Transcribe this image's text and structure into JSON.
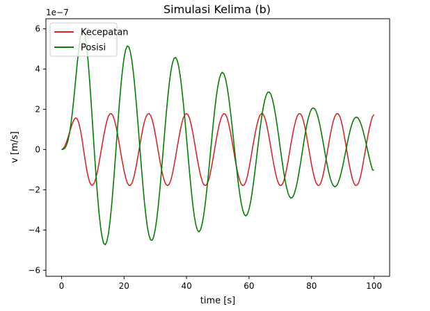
{
  "chart_data": {
    "type": "line",
    "title": "Simulasi Kelima (b)",
    "xlabel": "time [s]",
    "ylabel": "v [m/s]",
    "offset_label": "1e−7",
    "xlim": [
      -5,
      105
    ],
    "ylim": [
      -6.3,
      6.5
    ],
    "y_scale_exponent": -7,
    "grid": false,
    "legend_position": "upper-left",
    "x_ticks": [
      0,
      20,
      40,
      60,
      80,
      100
    ],
    "x_tick_labels": [
      "0",
      "20",
      "40",
      "60",
      "80",
      "100"
    ],
    "y_ticks": [
      -6,
      -4,
      -2,
      0,
      2,
      4,
      6
    ],
    "y_tick_labels": [
      "−6",
      "−4",
      "−2",
      "0",
      "2",
      "4",
      "6"
    ],
    "series": [
      {
        "name": "Kecepatan",
        "color": "#d62728",
        "x": [
          0,
          0.5,
          1,
          1.5,
          2,
          2.5,
          3,
          3.5,
          4,
          4.5,
          5,
          5.5,
          6,
          6.5,
          7,
          7.5,
          8,
          8.5,
          9,
          9.5,
          10,
          10.5,
          11,
          11.5,
          12,
          12.5,
          13,
          13.5,
          14,
          14.5,
          15,
          15.5,
          16,
          16.5,
          17,
          17.5,
          18,
          18.5,
          19,
          19.5,
          20,
          20.5,
          21,
          21.5,
          22,
          22.5,
          23,
          23.5,
          24,
          24.5,
          25,
          25.5,
          26,
          26.5,
          27,
          27.5,
          28,
          28.5,
          29,
          29.5,
          30,
          30.5,
          31,
          31.5,
          32,
          32.5,
          33,
          33.5,
          34,
          34.5,
          35,
          35.5,
          36,
          36.5,
          37,
          37.5,
          38,
          38.5,
          39,
          39.5,
          40,
          40.5,
          41,
          41.5,
          42,
          42.5,
          43,
          43.5,
          44,
          44.5,
          45,
          45.5,
          46,
          46.5,
          47,
          47.5,
          48,
          48.5,
          49,
          49.5,
          50,
          50.5,
          51,
          51.5,
          52,
          52.5,
          53,
          53.5,
          54,
          54.5,
          55,
          55.5,
          56,
          56.5,
          57,
          57.5,
          58,
          58.5,
          59,
          59.5,
          60,
          60.5,
          61,
          61.5,
          62,
          62.5,
          63,
          63.5,
          64,
          64.5,
          65,
          65.5,
          66,
          66.5,
          67,
          67.5,
          68,
          68.5,
          69,
          69.5,
          70,
          70.5,
          71,
          71.5,
          72,
          72.5,
          73,
          73.5,
          74,
          74.5,
          75,
          75.5,
          76,
          76.5,
          77,
          77.5,
          78,
          78.5,
          79,
          79.5,
          80,
          80.5,
          81,
          81.5,
          82,
          82.5,
          83,
          83.5,
          84,
          84.5,
          85,
          85.5,
          86,
          86.5,
          87,
          87.5,
          88,
          88.5,
          89,
          89.5,
          90,
          90.5,
          91,
          91.5,
          92,
          92.5,
          93,
          93.5,
          94,
          94.5,
          95,
          95.5,
          96,
          96.5,
          97,
          97.5,
          98,
          98.5,
          99,
          99.5,
          100
        ],
        "y": [
          0.0,
          0.04,
          0.16,
          0.34,
          0.57,
          0.82,
          1.08,
          1.31,
          1.49,
          1.57,
          1.53,
          1.34,
          1.01,
          0.57,
          0.05,
          -0.47,
          -0.95,
          -1.34,
          -1.62,
          -1.76,
          -1.77,
          -1.66,
          -1.42,
          -1.08,
          -0.67,
          -0.22,
          0.24,
          0.68,
          1.08,
          1.42,
          1.66,
          1.78,
          1.78,
          1.66,
          1.43,
          1.1,
          0.7,
          0.26,
          -0.2,
          -0.64,
          -1.05,
          -1.39,
          -1.64,
          -1.77,
          -1.79,
          -1.68,
          -1.46,
          -1.13,
          -0.73,
          -0.29,
          0.17,
          0.61,
          1.02,
          1.37,
          1.62,
          1.76,
          1.79,
          1.7,
          1.49,
          1.17,
          0.77,
          0.33,
          -0.13,
          -0.58,
          -0.99,
          -1.34,
          -1.6,
          -1.75,
          -1.79,
          -1.71,
          -1.51,
          -1.2,
          -0.8,
          -0.36,
          0.1,
          0.54,
          0.96,
          1.31,
          1.58,
          1.74,
          1.79,
          1.72,
          1.53,
          1.23,
          0.84,
          0.4,
          -0.06,
          -0.51,
          -0.93,
          -1.29,
          -1.57,
          -1.74,
          -1.79,
          -1.73,
          -1.55,
          -1.26,
          -0.87,
          -0.43,
          0.03,
          0.48,
          0.9,
          1.26,
          1.54,
          1.72,
          1.79,
          1.74,
          1.57,
          1.28,
          0.9,
          0.47,
          0.01,
          -0.45,
          -0.87,
          -1.24,
          -1.53,
          -1.72,
          -1.79,
          -1.75,
          -1.59,
          -1.31,
          -0.93,
          -0.5,
          -0.04,
          0.41,
          0.84,
          1.21,
          1.51,
          1.71,
          1.79,
          1.76,
          1.6,
          1.33,
          0.96,
          0.53,
          0.08,
          -0.38,
          -0.81,
          -1.19,
          -1.49,
          -1.7,
          -1.79,
          -1.77,
          -1.62,
          -1.36,
          -0.99,
          -0.57,
          -0.11,
          0.35,
          0.78,
          1.16,
          1.47,
          1.69,
          1.79,
          1.77,
          1.64,
          1.38,
          1.02,
          0.6,
          0.15,
          -0.31,
          -0.75,
          -1.13,
          -1.45,
          -1.67,
          -1.78,
          -1.78,
          -1.65,
          -1.4,
          -1.05,
          -0.63,
          -0.18,
          0.28,
          0.72,
          1.11,
          1.43,
          1.66,
          1.78,
          1.78,
          1.67,
          1.43,
          1.08,
          0.66,
          0.21,
          -0.25,
          -0.69,
          -1.08,
          -1.41,
          -1.65,
          -1.78,
          -1.78,
          -1.68,
          -1.45,
          -1.11,
          -0.69,
          -0.25,
          0.21,
          0.65,
          1.05,
          1.38,
          1.63,
          1.74
        ]
      },
      {
        "name": "Posisi",
        "color": "#008000",
        "x": [
          0,
          0.5,
          1,
          1.5,
          2,
          2.5,
          3,
          3.5,
          4,
          4.5,
          5,
          5.5,
          6,
          6.5,
          7,
          7.5,
          8,
          8.5,
          9,
          9.5,
          10,
          10.5,
          11,
          11.5,
          12,
          12.5,
          13,
          13.5,
          14,
          14.5,
          15,
          15.5,
          16,
          16.5,
          17,
          17.5,
          18,
          18.5,
          19,
          19.5,
          20,
          20.5,
          21,
          21.5,
          22,
          22.5,
          23,
          23.5,
          24,
          24.5,
          25,
          25.5,
          26,
          26.5,
          27,
          27.5,
          28,
          28.5,
          29,
          29.5,
          30,
          30.5,
          31,
          31.5,
          32,
          32.5,
          33,
          33.5,
          34,
          34.5,
          35,
          35.5,
          36,
          36.5,
          37,
          37.5,
          38,
          38.5,
          39,
          39.5,
          40,
          40.5,
          41,
          41.5,
          42,
          42.5,
          43,
          43.5,
          44,
          44.5,
          45,
          45.5,
          46,
          46.5,
          47,
          47.5,
          48,
          48.5,
          49,
          49.5,
          50,
          50.5,
          51,
          51.5,
          52,
          52.5,
          53,
          53.5,
          54,
          54.5,
          55,
          55.5,
          56,
          56.5,
          57,
          57.5,
          58,
          58.5,
          59,
          59.5,
          60,
          60.5,
          61,
          61.5,
          62,
          62.5,
          63,
          63.5,
          64,
          64.5,
          65,
          65.5,
          66,
          66.5,
          67,
          67.5,
          68,
          68.5,
          69,
          69.5,
          70,
          70.5,
          71,
          71.5,
          72,
          72.5,
          73,
          73.5,
          74,
          74.5,
          75,
          75.5,
          76,
          76.5,
          77,
          77.5,
          78,
          78.5,
          79,
          79.5,
          80,
          80.5,
          81,
          81.5,
          82,
          82.5,
          83,
          83.5,
          84,
          84.5,
          85,
          85.5,
          86,
          86.5,
          87,
          87.5,
          88,
          88.5,
          89,
          89.5,
          90,
          90.5,
          91,
          91.5,
          92,
          92.5,
          93,
          93.5,
          94,
          94.5,
          95,
          95.5,
          96,
          96.5,
          97,
          97.5,
          98,
          98.5,
          99,
          99.5,
          100
        ],
        "y": [
          0.0,
          0.01,
          0.06,
          0.18,
          0.41,
          0.77,
          1.26,
          1.89,
          2.64,
          3.45,
          4.25,
          4.98,
          5.55,
          5.89,
          5.94,
          5.7,
          5.17,
          4.38,
          3.4,
          2.28,
          1.09,
          -0.1,
          -1.24,
          -2.27,
          -3.16,
          -3.87,
          -4.37,
          -4.67,
          -4.73,
          -4.57,
          -4.19,
          -3.6,
          -2.83,
          -1.91,
          -0.89,
          0.18,
          1.25,
          2.27,
          3.18,
          3.95,
          4.55,
          4.95,
          5.14,
          5.11,
          4.87,
          4.43,
          3.81,
          3.04,
          2.16,
          1.21,
          0.22,
          -0.77,
          -1.71,
          -2.57,
          -3.3,
          -3.88,
          -4.28,
          -4.49,
          -4.51,
          -4.33,
          -3.96,
          -3.42,
          -2.73,
          -1.92,
          -1.03,
          -0.09,
          0.86,
          1.77,
          2.6,
          3.32,
          3.89,
          4.3,
          4.53,
          4.58,
          4.44,
          4.12,
          3.64,
          3.01,
          2.27,
          1.45,
          0.57,
          -0.32,
          -1.2,
          -2.01,
          -2.73,
          -3.32,
          -3.75,
          -4.01,
          -4.09,
          -3.98,
          -3.7,
          -3.26,
          -2.68,
          -1.99,
          -1.22,
          -0.41,
          0.41,
          1.21,
          1.95,
          2.6,
          3.13,
          3.52,
          3.76,
          3.84,
          3.75,
          3.5,
          3.11,
          2.59,
          1.97,
          1.28,
          0.55,
          -0.19,
          -0.92,
          -1.59,
          -2.18,
          -2.66,
          -3.02,
          -3.24,
          -3.3,
          -3.21,
          -2.97,
          -2.61,
          -2.13,
          -1.56,
          -0.94,
          -0.29,
          0.36,
          0.99,
          1.56,
          2.05,
          2.44,
          2.71,
          2.85,
          2.86,
          2.74,
          2.49,
          2.14,
          1.7,
          1.19,
          0.64,
          0.07,
          -0.49,
          -1.02,
          -1.49,
          -1.88,
          -2.17,
          -2.35,
          -2.42,
          -2.36,
          -2.19,
          -1.92,
          -1.56,
          -1.13,
          -0.66,
          -0.16,
          0.34,
          0.81,
          1.23,
          1.58,
          1.84,
          2.01,
          2.07,
          2.03,
          1.89,
          1.65,
          1.34,
          0.96,
          0.54,
          0.1,
          -0.34,
          -0.75,
          -1.12,
          -1.43,
          -1.66,
          -1.8,
          -1.85,
          -1.8,
          -1.66,
          -1.44,
          -1.15,
          -0.81,
          -0.43,
          -0.04,
          0.35,
          0.72,
          1.04,
          1.3,
          1.49,
          1.59,
          1.61,
          1.54,
          1.4,
          1.19,
          0.92,
          0.61,
          0.27,
          -0.08,
          -0.42,
          -0.74,
          -1.01,
          -1.03
        ]
      }
    ]
  }
}
